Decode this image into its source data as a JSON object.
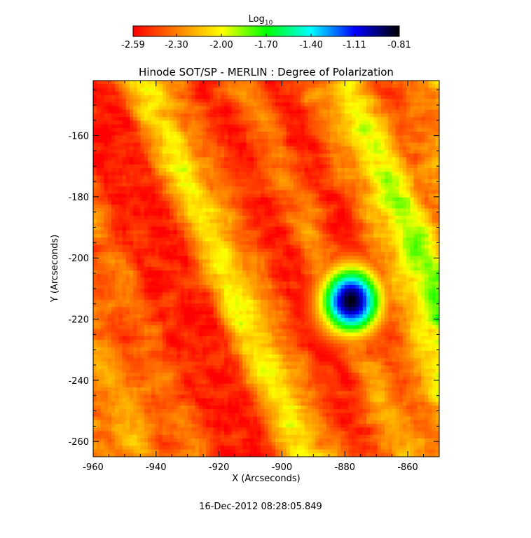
{
  "chart_data": {
    "type": "heatmap",
    "title": "Hinode SOT/SP - MERLIN : Degree of Polarization",
    "xlabel": "X (Arcseconds)",
    "ylabel": "Y (Arcseconds)",
    "xlim": [
      -960,
      -850
    ],
    "ylim": [
      -265,
      -142
    ],
    "x_ticks": [
      -960,
      -940,
      -920,
      -900,
      -880,
      -860
    ],
    "y_ticks": [
      -160,
      -180,
      -200,
      -220,
      -240,
      -260
    ],
    "colorbar": {
      "label": "Log",
      "label_subscript": "10",
      "scale": "log10",
      "range": [
        -2.59,
        -0.81
      ],
      "tick_labels": [
        "-2.59",
        "-2.30",
        "-2.00",
        "-1.70",
        "-1.40",
        "-1.11",
        "-0.81"
      ],
      "tick_values": [
        -2.59,
        -2.3,
        -2.0,
        -1.7,
        -1.4,
        -1.11,
        -0.81
      ],
      "colormap": [
        "#ff0000",
        "#ff7f00",
        "#ffff00",
        "#00ff00",
        "#00ffff",
        "#0000ff",
        "#000000"
      ]
    },
    "features": [
      {
        "x": -878,
        "y": -214,
        "peak": -0.81,
        "sigma_x": 6.5,
        "sigma_y": 7.5
      }
    ],
    "background_value": -2.59,
    "timestamp": "16-Dec-2012 08:28:05.849"
  }
}
